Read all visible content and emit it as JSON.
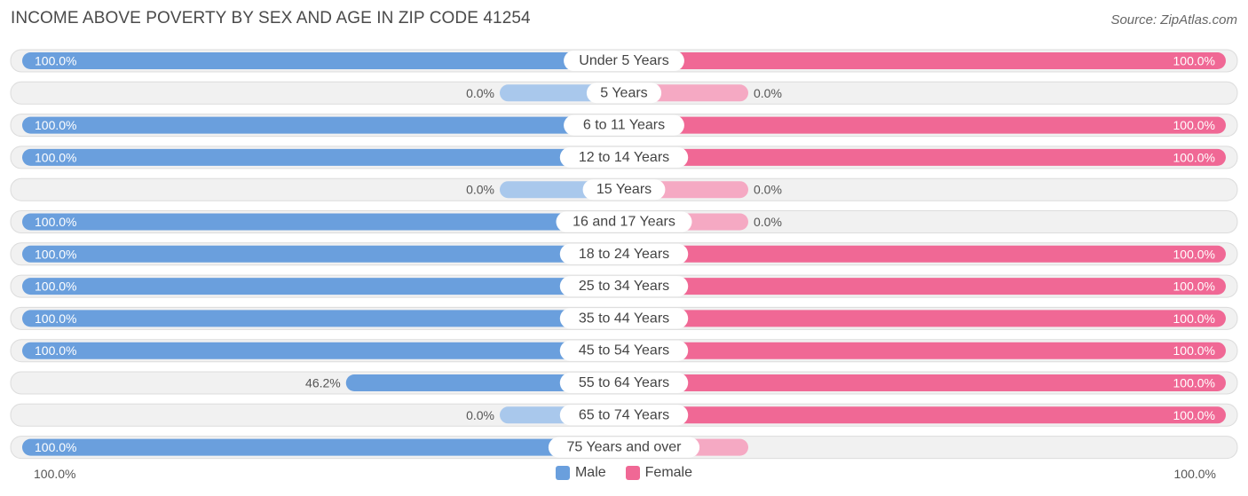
{
  "title": "INCOME ABOVE POVERTY BY SEX AND AGE IN ZIP CODE 41254",
  "source": "Source: ZipAtlas.com",
  "colors": {
    "male": "#6a9fdd",
    "male_light": "#a9c8ec",
    "female": "#f06895",
    "female_light": "#f5a9c3",
    "row_bg": "#f1f1f1",
    "row_border": "#dcdcdc"
  },
  "legend": {
    "male": "Male",
    "female": "Female"
  },
  "axis": {
    "left": "100.0%",
    "right": "100.0%"
  },
  "chart_data": {
    "type": "bar",
    "orientation": "horizontal-diverging",
    "categories": [
      "Under 5 Years",
      "5 Years",
      "6 to 11 Years",
      "12 to 14 Years",
      "15 Years",
      "16 and 17 Years",
      "18 to 24 Years",
      "25 to 34 Years",
      "35 to 44 Years",
      "45 to 54 Years",
      "55 to 64 Years",
      "65 to 74 Years",
      "75 Years and over"
    ],
    "series": [
      {
        "name": "Male",
        "values": [
          100.0,
          0.0,
          100.0,
          100.0,
          0.0,
          100.0,
          100.0,
          100.0,
          100.0,
          100.0,
          46.2,
          0.0,
          100.0
        ],
        "labels": [
          "100.0%",
          "0.0%",
          "100.0%",
          "100.0%",
          "0.0%",
          "100.0%",
          "100.0%",
          "100.0%",
          "100.0%",
          "100.0%",
          "46.2%",
          "0.0%",
          "100.0%"
        ]
      },
      {
        "name": "Female",
        "values": [
          100.0,
          0.0,
          100.0,
          100.0,
          0.0,
          0.0,
          100.0,
          100.0,
          100.0,
          100.0,
          100.0,
          100.0,
          0.0
        ],
        "labels": [
          "100.0%",
          "0.0%",
          "100.0%",
          "100.0%",
          "0.0%",
          "0.0%",
          "100.0%",
          "100.0%",
          "100.0%",
          "100.0%",
          "100.0%",
          "100.0%",
          ""
        ]
      }
    ],
    "xlim": [
      -100,
      100
    ],
    "legend_position": "bottom-center",
    "grid": false
  }
}
